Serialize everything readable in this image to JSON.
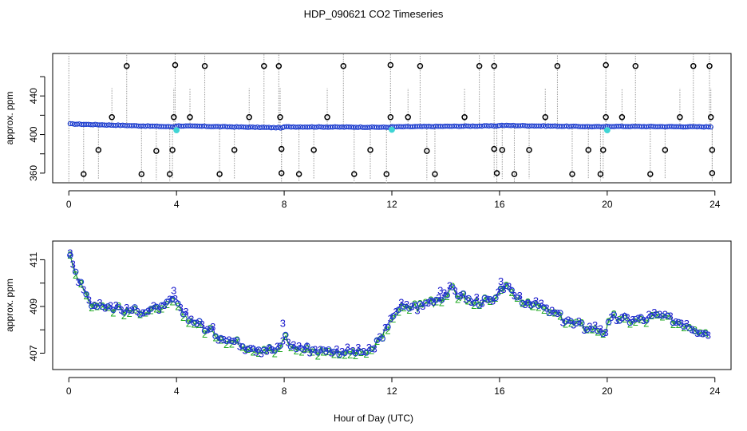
{
  "chart_data": {
    "title": "HDP_090621  CO2 Timeseries",
    "xlabel": "Hour of Day (UTC)",
    "colors": {
      "raw_points": "#000000",
      "avg_points": "#1f3fcf",
      "spike_lines": "#9a9a9a",
      "highlight": "#3fd4d4",
      "series_2": "#22aa22",
      "series_3": "#1a1acc"
    },
    "panels": [
      {
        "type": "scatter",
        "ylabel": "approx. ppm",
        "xlim": [
          -0.6,
          24.6
        ],
        "ylim": [
          350,
          484
        ],
        "x_ticks": [
          "0",
          "4",
          "8",
          "12",
          "16",
          "20",
          "24"
        ],
        "y_ticks": [
          "360",
          "400",
          "440"
        ],
        "minor_y_ticks": [
          380,
          420,
          460
        ],
        "outliers_high": [
          [
            2.15,
            471
          ],
          [
            3.95,
            472
          ],
          [
            5.05,
            471
          ],
          [
            7.25,
            471
          ],
          [
            7.8,
            471
          ],
          [
            10.2,
            471
          ],
          [
            11.95,
            472
          ],
          [
            13.05,
            471
          ],
          [
            15.25,
            471
          ],
          [
            15.8,
            471
          ],
          [
            18.15,
            471
          ],
          [
            19.95,
            472
          ],
          [
            21.05,
            471
          ],
          [
            23.2,
            471
          ],
          [
            23.8,
            471
          ]
        ],
        "outliers_low": [
          [
            0.55,
            359
          ],
          [
            2.7,
            359
          ],
          [
            3.75,
            359
          ],
          [
            5.6,
            359
          ],
          [
            7.9,
            360
          ],
          [
            8.55,
            359
          ],
          [
            10.6,
            359
          ],
          [
            11.8,
            359
          ],
          [
            13.6,
            359
          ],
          [
            15.9,
            360
          ],
          [
            16.55,
            359
          ],
          [
            18.7,
            359
          ],
          [
            19.75,
            359
          ],
          [
            21.6,
            359
          ],
          [
            23.9,
            360
          ]
        ],
        "outliers_mid_high": [
          [
            1.6,
            418
          ],
          [
            3.9,
            418
          ],
          [
            4.5,
            418
          ],
          [
            6.7,
            418
          ],
          [
            7.85,
            418
          ],
          [
            9.6,
            418
          ],
          [
            11.95,
            418
          ],
          [
            12.6,
            418
          ],
          [
            14.7,
            418
          ],
          [
            17.7,
            418
          ],
          [
            19.95,
            418
          ],
          [
            20.55,
            418
          ],
          [
            22.7,
            418
          ],
          [
            23.85,
            418
          ]
        ],
        "outliers_mid_low": [
          [
            1.1,
            384
          ],
          [
            3.25,
            383
          ],
          [
            3.85,
            384
          ],
          [
            6.15,
            384
          ],
          [
            7.9,
            385
          ],
          [
            9.1,
            384
          ],
          [
            11.2,
            384
          ],
          [
            13.3,
            383
          ],
          [
            15.8,
            385
          ],
          [
            16.1,
            384
          ],
          [
            17.1,
            384
          ],
          [
            19.3,
            384
          ],
          [
            19.85,
            384
          ],
          [
            22.15,
            384
          ],
          [
            23.9,
            384
          ]
        ],
        "highlight_points": [
          [
            4.0,
            404.5
          ],
          [
            12.0,
            405
          ],
          [
            20.0,
            404.5
          ]
        ],
        "baseline_segments": [
          {
            "start": 0.05,
            "end": 3.95,
            "start_val": 411,
            "end_val": 408
          },
          {
            "start": 4.0,
            "end": 7.95,
            "start_val": 409,
            "end_val": 407
          },
          {
            "start": 8.0,
            "end": 11.95,
            "start_val": 408,
            "end_val": 407.5
          },
          {
            "start": 12.0,
            "end": 15.95,
            "start_val": 408,
            "end_val": 409
          },
          {
            "start": 16.0,
            "end": 19.95,
            "start_val": 409.5,
            "end_val": 408
          },
          {
            "start": 20.0,
            "end": 23.85,
            "start_val": 408.5,
            "end_val": 408
          }
        ]
      },
      {
        "type": "line",
        "ylabel": "approx. ppm",
        "xlim": [
          -0.6,
          24.6
        ],
        "ylim": [
          406.3,
          411.8
        ],
        "x_ticks": [
          "0",
          "4",
          "8",
          "12",
          "16",
          "20",
          "24"
        ],
        "y_ticks": [
          "407",
          "409",
          "411"
        ],
        "minor_y_ticks": [
          408,
          410
        ],
        "series": [
          {
            "name": "2",
            "marker": "2",
            "style": "numbered points"
          },
          {
            "name": "3",
            "marker": "3",
            "style": "numbered points"
          },
          {
            "name": "o",
            "marker": "o",
            "style": "open circles"
          }
        ],
        "trend_knots": [
          [
            0.05,
            411.3
          ],
          [
            0.4,
            410.0
          ],
          [
            0.8,
            409.2
          ],
          [
            1.5,
            409.0
          ],
          [
            2.5,
            408.8
          ],
          [
            3.5,
            408.9
          ],
          [
            3.9,
            409.3
          ],
          [
            4.1,
            408.9
          ],
          [
            4.6,
            408.4
          ],
          [
            5.5,
            407.8
          ],
          [
            6.3,
            407.4
          ],
          [
            7.2,
            407.2
          ],
          [
            7.8,
            407.1
          ],
          [
            8.0,
            407.8
          ],
          [
            8.3,
            407.3
          ],
          [
            9.5,
            407.1
          ],
          [
            10.5,
            407.1
          ],
          [
            11.2,
            407.0
          ],
          [
            11.5,
            407.6
          ],
          [
            11.9,
            408.1
          ],
          [
            12.1,
            408.9
          ],
          [
            13.0,
            409.0
          ],
          [
            13.8,
            409.4
          ],
          [
            14.2,
            409.7
          ],
          [
            15.0,
            409.2
          ],
          [
            15.9,
            409.2
          ],
          [
            16.05,
            409.9
          ],
          [
            16.6,
            409.4
          ],
          [
            17.5,
            409.0
          ],
          [
            18.2,
            408.6
          ],
          [
            18.8,
            408.2
          ],
          [
            19.5,
            408.1
          ],
          [
            19.9,
            407.9
          ],
          [
            20.2,
            408.5
          ],
          [
            21.0,
            408.4
          ],
          [
            22.0,
            408.6
          ],
          [
            22.6,
            408.4
          ],
          [
            23.2,
            408.1
          ],
          [
            23.8,
            407.8
          ]
        ]
      }
    ]
  }
}
